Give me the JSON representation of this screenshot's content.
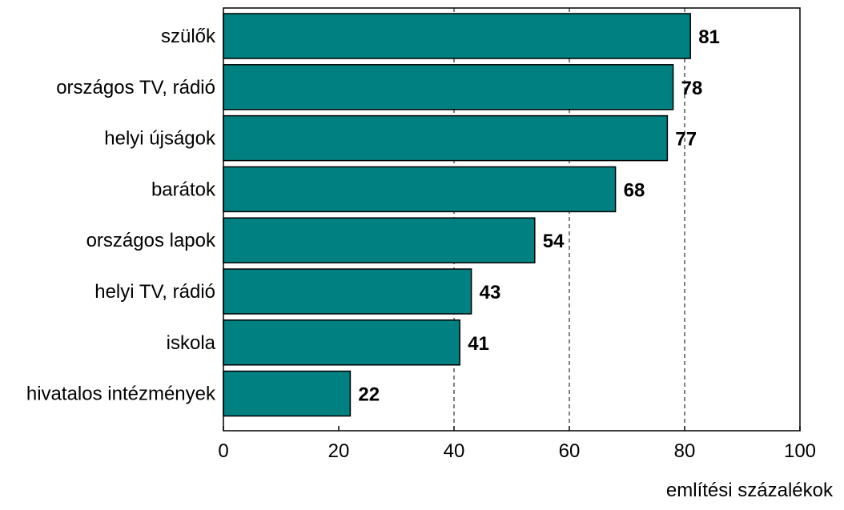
{
  "chart_data": {
    "type": "bar",
    "orientation": "horizontal",
    "categories": [
      "szülők",
      "országos TV, rádió",
      "helyi újságok",
      "barátok",
      "országos lapok",
      "helyi TV, rádió",
      "iskola",
      "hivatalos intézmények"
    ],
    "values": [
      81,
      78,
      77,
      68,
      54,
      43,
      41,
      22
    ],
    "data_labels": [
      "81",
      "78",
      "77",
      "68",
      "54",
      "43",
      "41",
      "22"
    ],
    "xlim": [
      0,
      100
    ],
    "xticks": [
      0,
      20,
      40,
      60,
      80,
      100
    ],
    "xtick_labels": [
      "0",
      "20",
      "40",
      "60",
      "80",
      "100"
    ],
    "gridlines": [
      40,
      60,
      80
    ],
    "grid": "dashed vertical",
    "xlabel": "említési százalékok",
    "ylabel": "",
    "title": "",
    "legend": "none",
    "bar_color": "#008080"
  }
}
